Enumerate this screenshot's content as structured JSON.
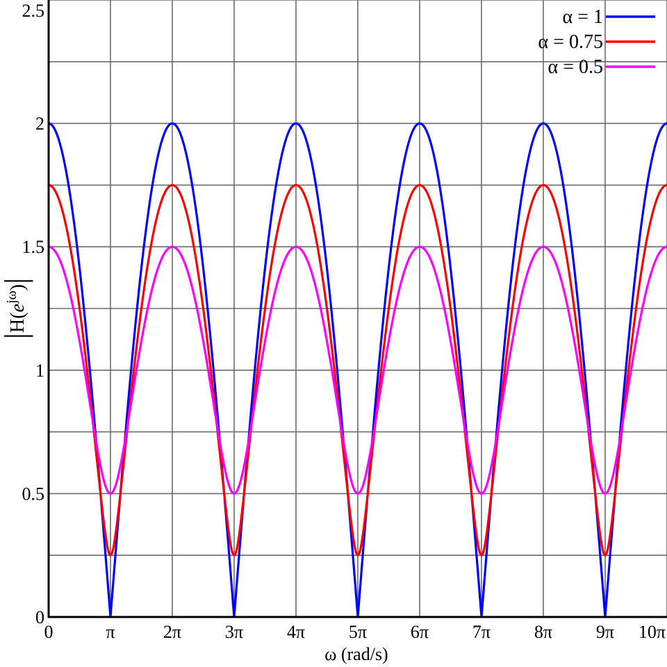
{
  "chart_data": {
    "type": "line",
    "xlabel": "ω (rad/s)",
    "ylabel": {
      "bar": "|",
      "main": "H(",
      "italic": "e",
      "sup": "jω",
      "close": ")"
    },
    "xlim": [
      0,
      31.4159
    ],
    "ylim": [
      0,
      2.5
    ],
    "grid": true,
    "grid_y_step": 0.25,
    "legend_placement": "top-right",
    "x_ticks": [
      {
        "value": 0,
        "label": "0"
      },
      {
        "value": 3.14159,
        "label": "π"
      },
      {
        "value": 6.28319,
        "label": "2π"
      },
      {
        "value": 9.42478,
        "label": "3π"
      },
      {
        "value": 12.56637,
        "label": "4π"
      },
      {
        "value": 15.70796,
        "label": "5π"
      },
      {
        "value": 18.84956,
        "label": "6π"
      },
      {
        "value": 21.99115,
        "label": "7π"
      },
      {
        "value": 25.13274,
        "label": "8π"
      },
      {
        "value": 28.27433,
        "label": "9π"
      },
      {
        "value": 31.41593,
        "label": "10π"
      }
    ],
    "y_ticks": [
      {
        "value": 0,
        "label": "0"
      },
      {
        "value": 0.5,
        "label": "0.5"
      },
      {
        "value": 1,
        "label": "1"
      },
      {
        "value": 1.5,
        "label": "1.5"
      },
      {
        "value": 2,
        "label": "2"
      },
      {
        "value": 2.5,
        "label": "2.5"
      }
    ],
    "function": "|1 + α·e^(−jω)|",
    "series": [
      {
        "name": "α = 1",
        "alpha": 1,
        "max": 2,
        "min": 0,
        "color": "#0000ff"
      },
      {
        "name": "α = 0.75",
        "alpha": 0.75,
        "max": 1.75,
        "min": 0.25,
        "color": "#ff0000"
      },
      {
        "name": "α = 0.5",
        "alpha": 0.5,
        "max": 1.5,
        "min": 0.5,
        "color": "#ff00ff"
      }
    ]
  }
}
